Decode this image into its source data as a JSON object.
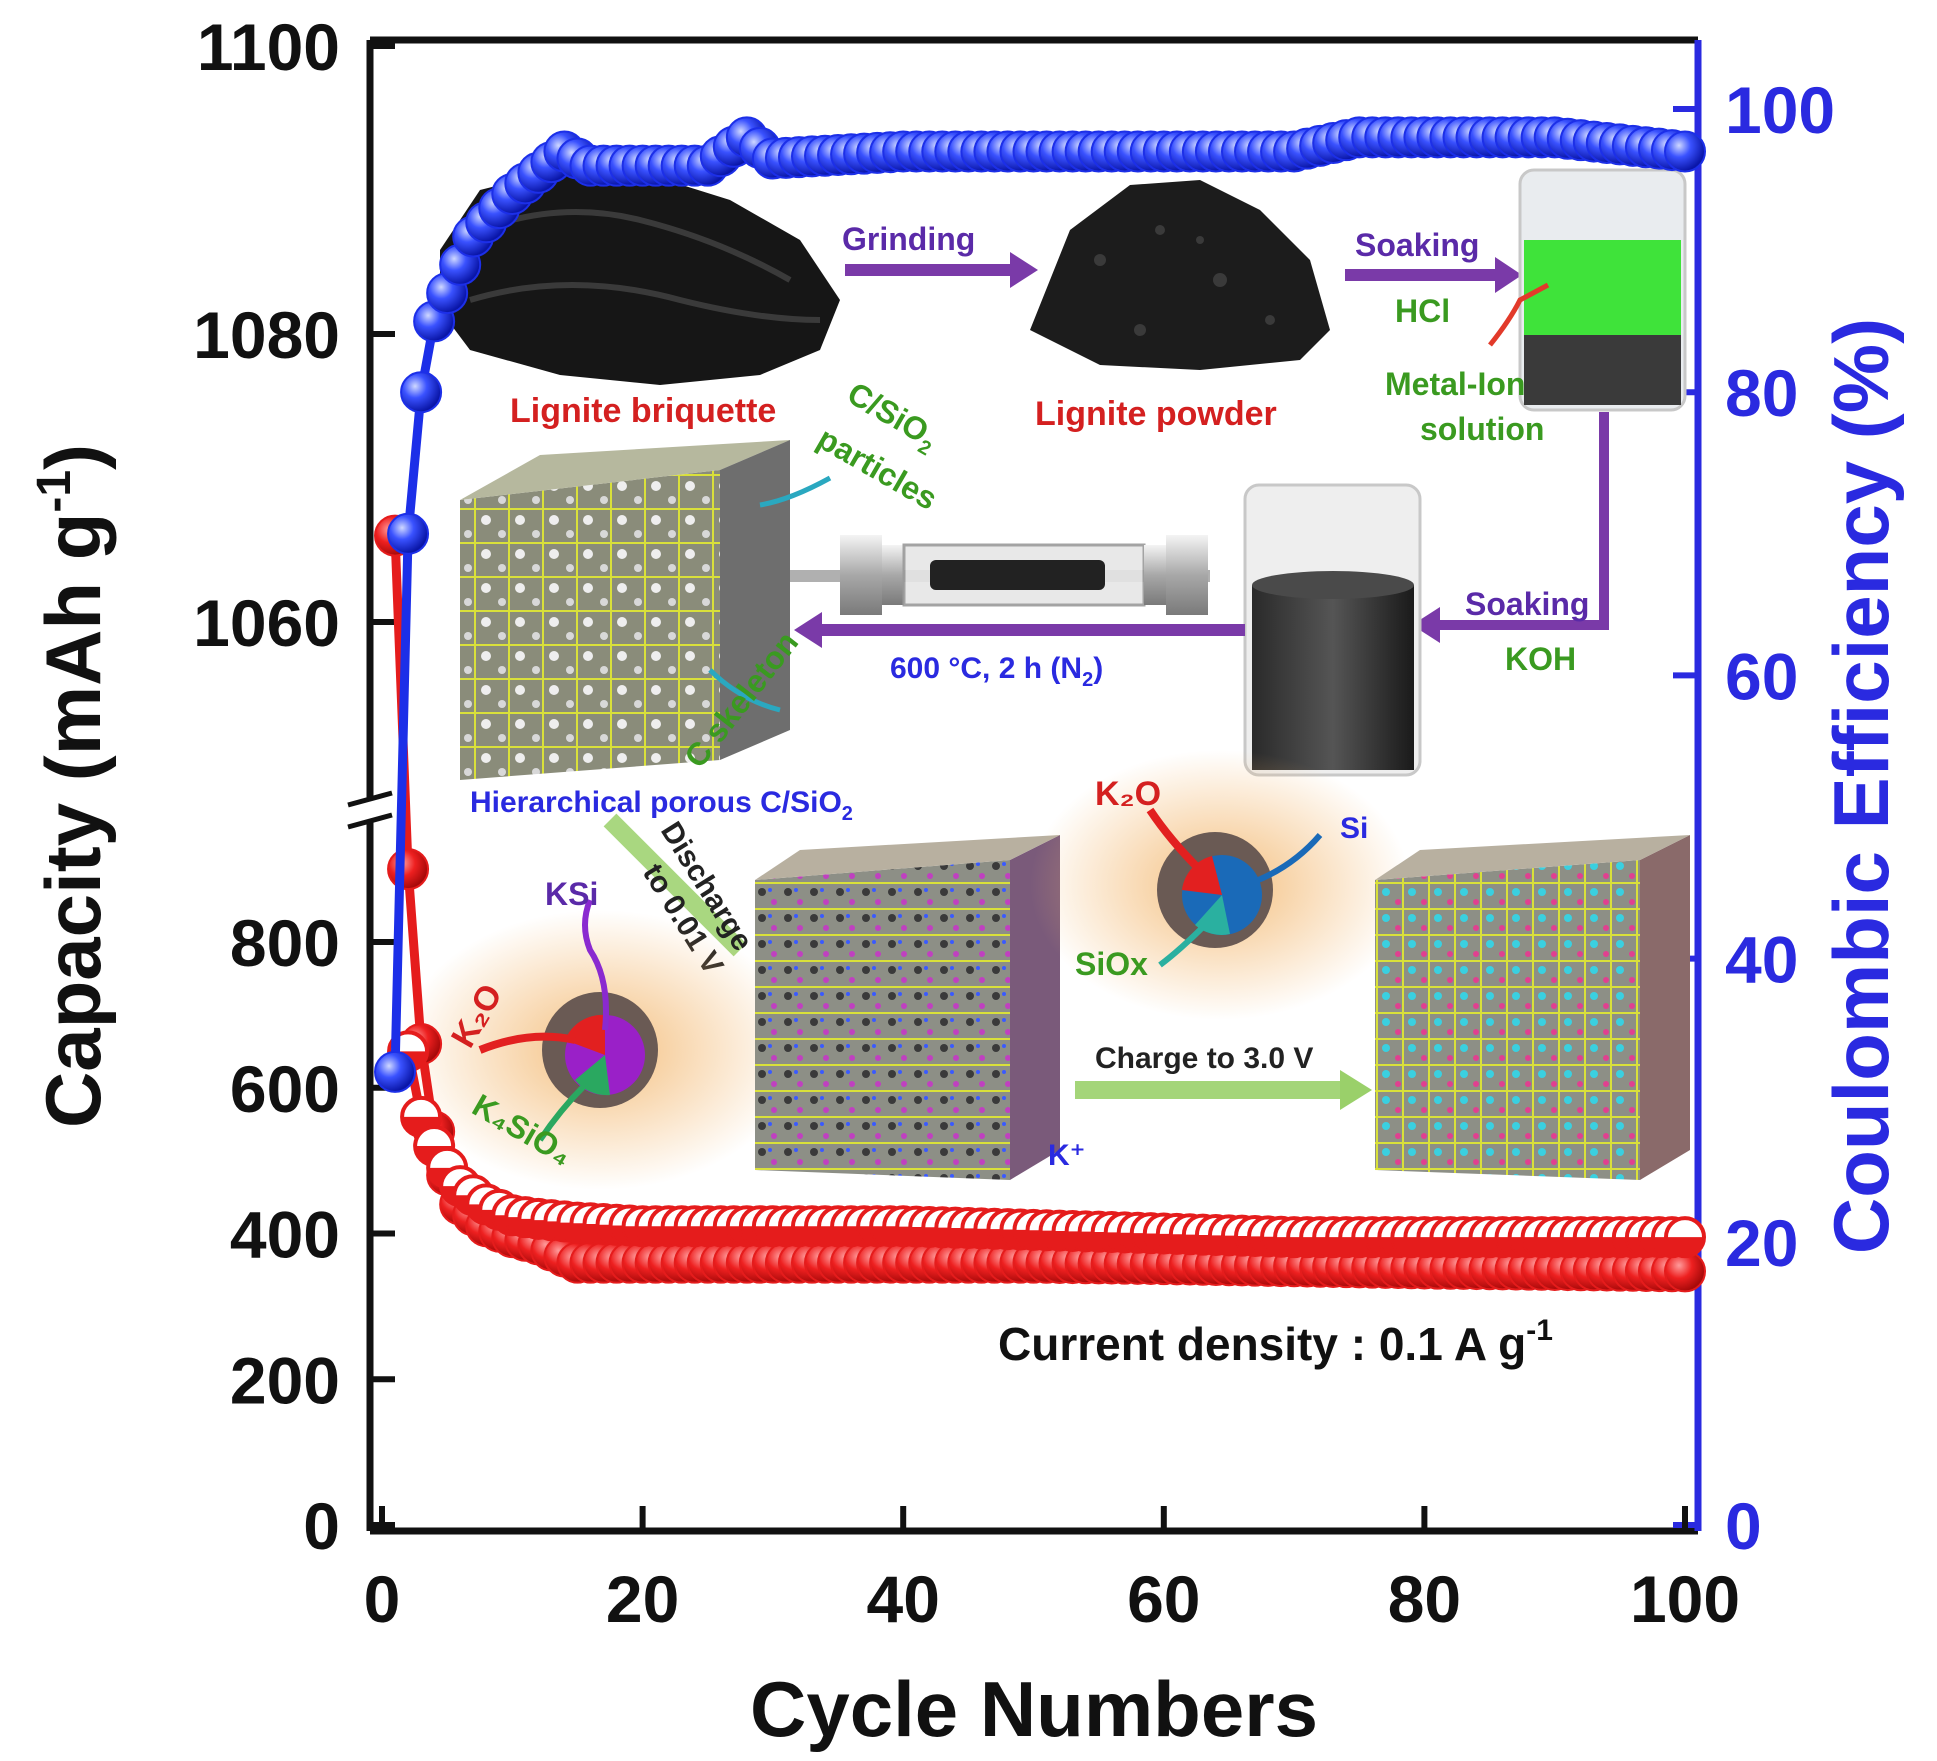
{
  "chart_data": {
    "type": "scatter",
    "xlabel": "Cycle Numbers",
    "ylabel_left": "Capacity (mAh g",
    "ylabel_left_sup": "-1",
    "ylabel_left_end": ")",
    "ylabel_right": "Coulombic Efficiency (%)",
    "xlim": [
      0,
      100
    ],
    "x_ticks": [
      "0",
      "20",
      "40",
      "60",
      "80",
      "100"
    ],
    "y_left_ticks_lower": [
      "0",
      "200",
      "400",
      "600",
      "800"
    ],
    "y_left_ticks_upper": [
      "1060",
      "1080",
      "1100"
    ],
    "y_left_break": "between 800 and 1060",
    "y_right_ticks": [
      "0",
      "20",
      "40",
      "60",
      "80",
      "100"
    ],
    "ylim_right": [
      0,
      100
    ],
    "colors": {
      "discharge": "#e51c1c",
      "charge": "#e51c1c",
      "efficiency": "#1c2fe8",
      "axis_right": "#2a2ae0"
    },
    "series": [
      {
        "axis": "left",
        "marker": "filled-circle",
        "color": "#e51c1c",
        "x": [
          1,
          2,
          3,
          4,
          5,
          6,
          8,
          10,
          12,
          15,
          20,
          30,
          40,
          50,
          60,
          70,
          80,
          90,
          100
        ],
        "values": [
          1066,
          900,
          660,
          540,
          480,
          440,
          410,
          395,
          385,
          360,
          360,
          360,
          360,
          360,
          358,
          355,
          352,
          350,
          348
        ]
      },
      {
        "axis": "left",
        "marker": "half-filled-circle",
        "color": "#e51c1c",
        "x": [
          2,
          3,
          4,
          5,
          6,
          8,
          10,
          12,
          15,
          20,
          30,
          40,
          50,
          60,
          70,
          80,
          90,
          100
        ],
        "values": [
          650,
          560,
          520,
          490,
          465,
          440,
          425,
          420,
          415,
          410,
          410,
          410,
          405,
          400,
          395,
          395,
          395,
          395
        ]
      },
      {
        "axis": "right",
        "marker": "filled-circle",
        "color": "#1c2fe8",
        "x": [
          1,
          2,
          3,
          4,
          5,
          6,
          7,
          8,
          10,
          12,
          14,
          16,
          20,
          25,
          28,
          30,
          40,
          50,
          60,
          70,
          75,
          80,
          90,
          100
        ],
        "values": [
          32,
          70,
          80,
          85,
          87,
          89,
          91,
          92,
          94,
          95.5,
          97,
          96,
          96,
          96,
          98,
          96.5,
          97,
          97,
          97,
          97,
          98,
          98,
          98,
          97
        ]
      }
    ]
  },
  "inset": {
    "labels": {
      "briquette": "Lignite briquette",
      "grinding": "Grinding",
      "powder": "Lignite powder",
      "soaking_top": "Soaking",
      "hcl": "HCl",
      "metal_ion_1": "Metal-Ion",
      "metal_ion_2": "solution",
      "cs_particles_1": "C/SiO",
      "cs_particles_sub": "2",
      "cs_particles_2": "particles",
      "c_skeleton": "C skeleton",
      "furnace": "600 °C, 2 h (N",
      "furnace_sub": "2",
      "furnace_end": ")",
      "soaking_mid": "Soaking",
      "koh": "KOH",
      "hierarchical": "Hierarchical porous C/SiO",
      "hierarchical_sub": "2",
      "discharge_1": "Discharge",
      "discharge_2": "to 0.01 V",
      "ksi": "KSi",
      "k2o_left": "K₂O",
      "k4sio4": "K₄SiO₄",
      "k2o_right": "K₂O",
      "si": "Si",
      "siox": "SiOx",
      "charge": "Charge to 3.0 V",
      "kplus": "K⁺"
    },
    "current_density": "Current density : 0.1 A g",
    "current_density_sup": "-1"
  }
}
